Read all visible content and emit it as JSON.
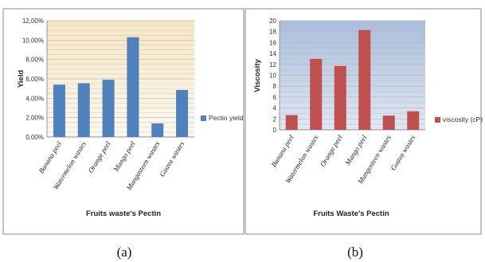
{
  "chart_data": [
    {
      "panel_label": "(a)",
      "type": "bar",
      "title": "",
      "xlabel": "Fruits waste's Pectin",
      "ylabel": "Yield",
      "categories": [
        "Banana peel",
        "Watermelon wastes",
        "Orange peel",
        "Mango peel",
        "Mangosteen wastes",
        "Guava wastes"
      ],
      "series": [
        {
          "name": "Pectin yield",
          "values": [
            5.4,
            5.55,
            5.9,
            10.3,
            1.4,
            4.85
          ],
          "color": "#4f81bd"
        }
      ],
      "ylim": [
        0,
        12
      ],
      "ytick_labels": [
        "0,00%",
        "2,00%",
        "4,00%",
        "6,00%",
        "8,00%",
        "10,00%",
        "12,00%"
      ],
      "grid": true,
      "background": "#fbf0d8",
      "legend_position": "right"
    },
    {
      "panel_label": "(b)",
      "type": "bar",
      "title": "",
      "xlabel": "Fruits Waste's Pectin",
      "ylabel": "Viscosity",
      "categories": [
        "Banana peel",
        "Watermelon wastes",
        "Orange peel",
        "Mango peel",
        "Mangosteen wastes",
        "Guava wastes"
      ],
      "series": [
        {
          "name": "viscosity (cP)",
          "values": [
            2.7,
            13.0,
            11.7,
            18.3,
            2.6,
            3.4
          ],
          "color": "#c0504d"
        }
      ],
      "ylim": [
        0,
        20
      ],
      "ytick_labels": [
        "0",
        "2",
        "4",
        "6",
        "8",
        "10",
        "12",
        "14",
        "16",
        "18",
        "20"
      ],
      "grid": true,
      "background": "#b8c9e2",
      "legend_position": "right"
    }
  ]
}
